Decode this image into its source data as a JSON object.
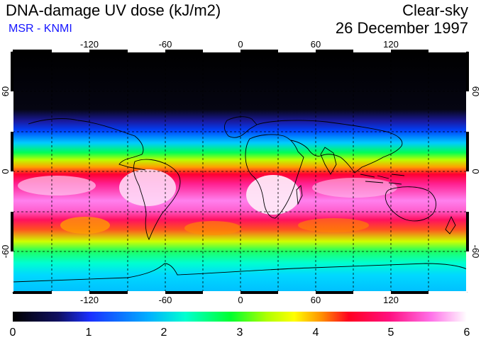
{
  "header": {
    "title": "DNA-damage UV dose (kJ/m2)",
    "subtitle": "MSR - KNMI",
    "mode": "Clear-sky",
    "date": "26 December 1997"
  },
  "map": {
    "lon_ticks": [
      "-120",
      "-60",
      "0",
      "60",
      "120"
    ],
    "lat_ticks": [
      "60",
      "0",
      "-60"
    ],
    "lat_ticks_right": [
      "60",
      "0",
      "-60"
    ]
  },
  "colorbar": {
    "ticks": [
      "0",
      "1",
      "2",
      "3",
      "4",
      "5",
      "6"
    ],
    "min": 0,
    "max": 6
  },
  "colors": {
    "subtitle": "#1515ff",
    "scale": [
      "#000000",
      "#1a1a80",
      "#0030ff",
      "#00c8ff",
      "#00ff40",
      "#c8ff00",
      "#ffff00",
      "#ff8000",
      "#ff0040",
      "#ff1080",
      "#ff60e0",
      "#ffffff"
    ]
  }
}
